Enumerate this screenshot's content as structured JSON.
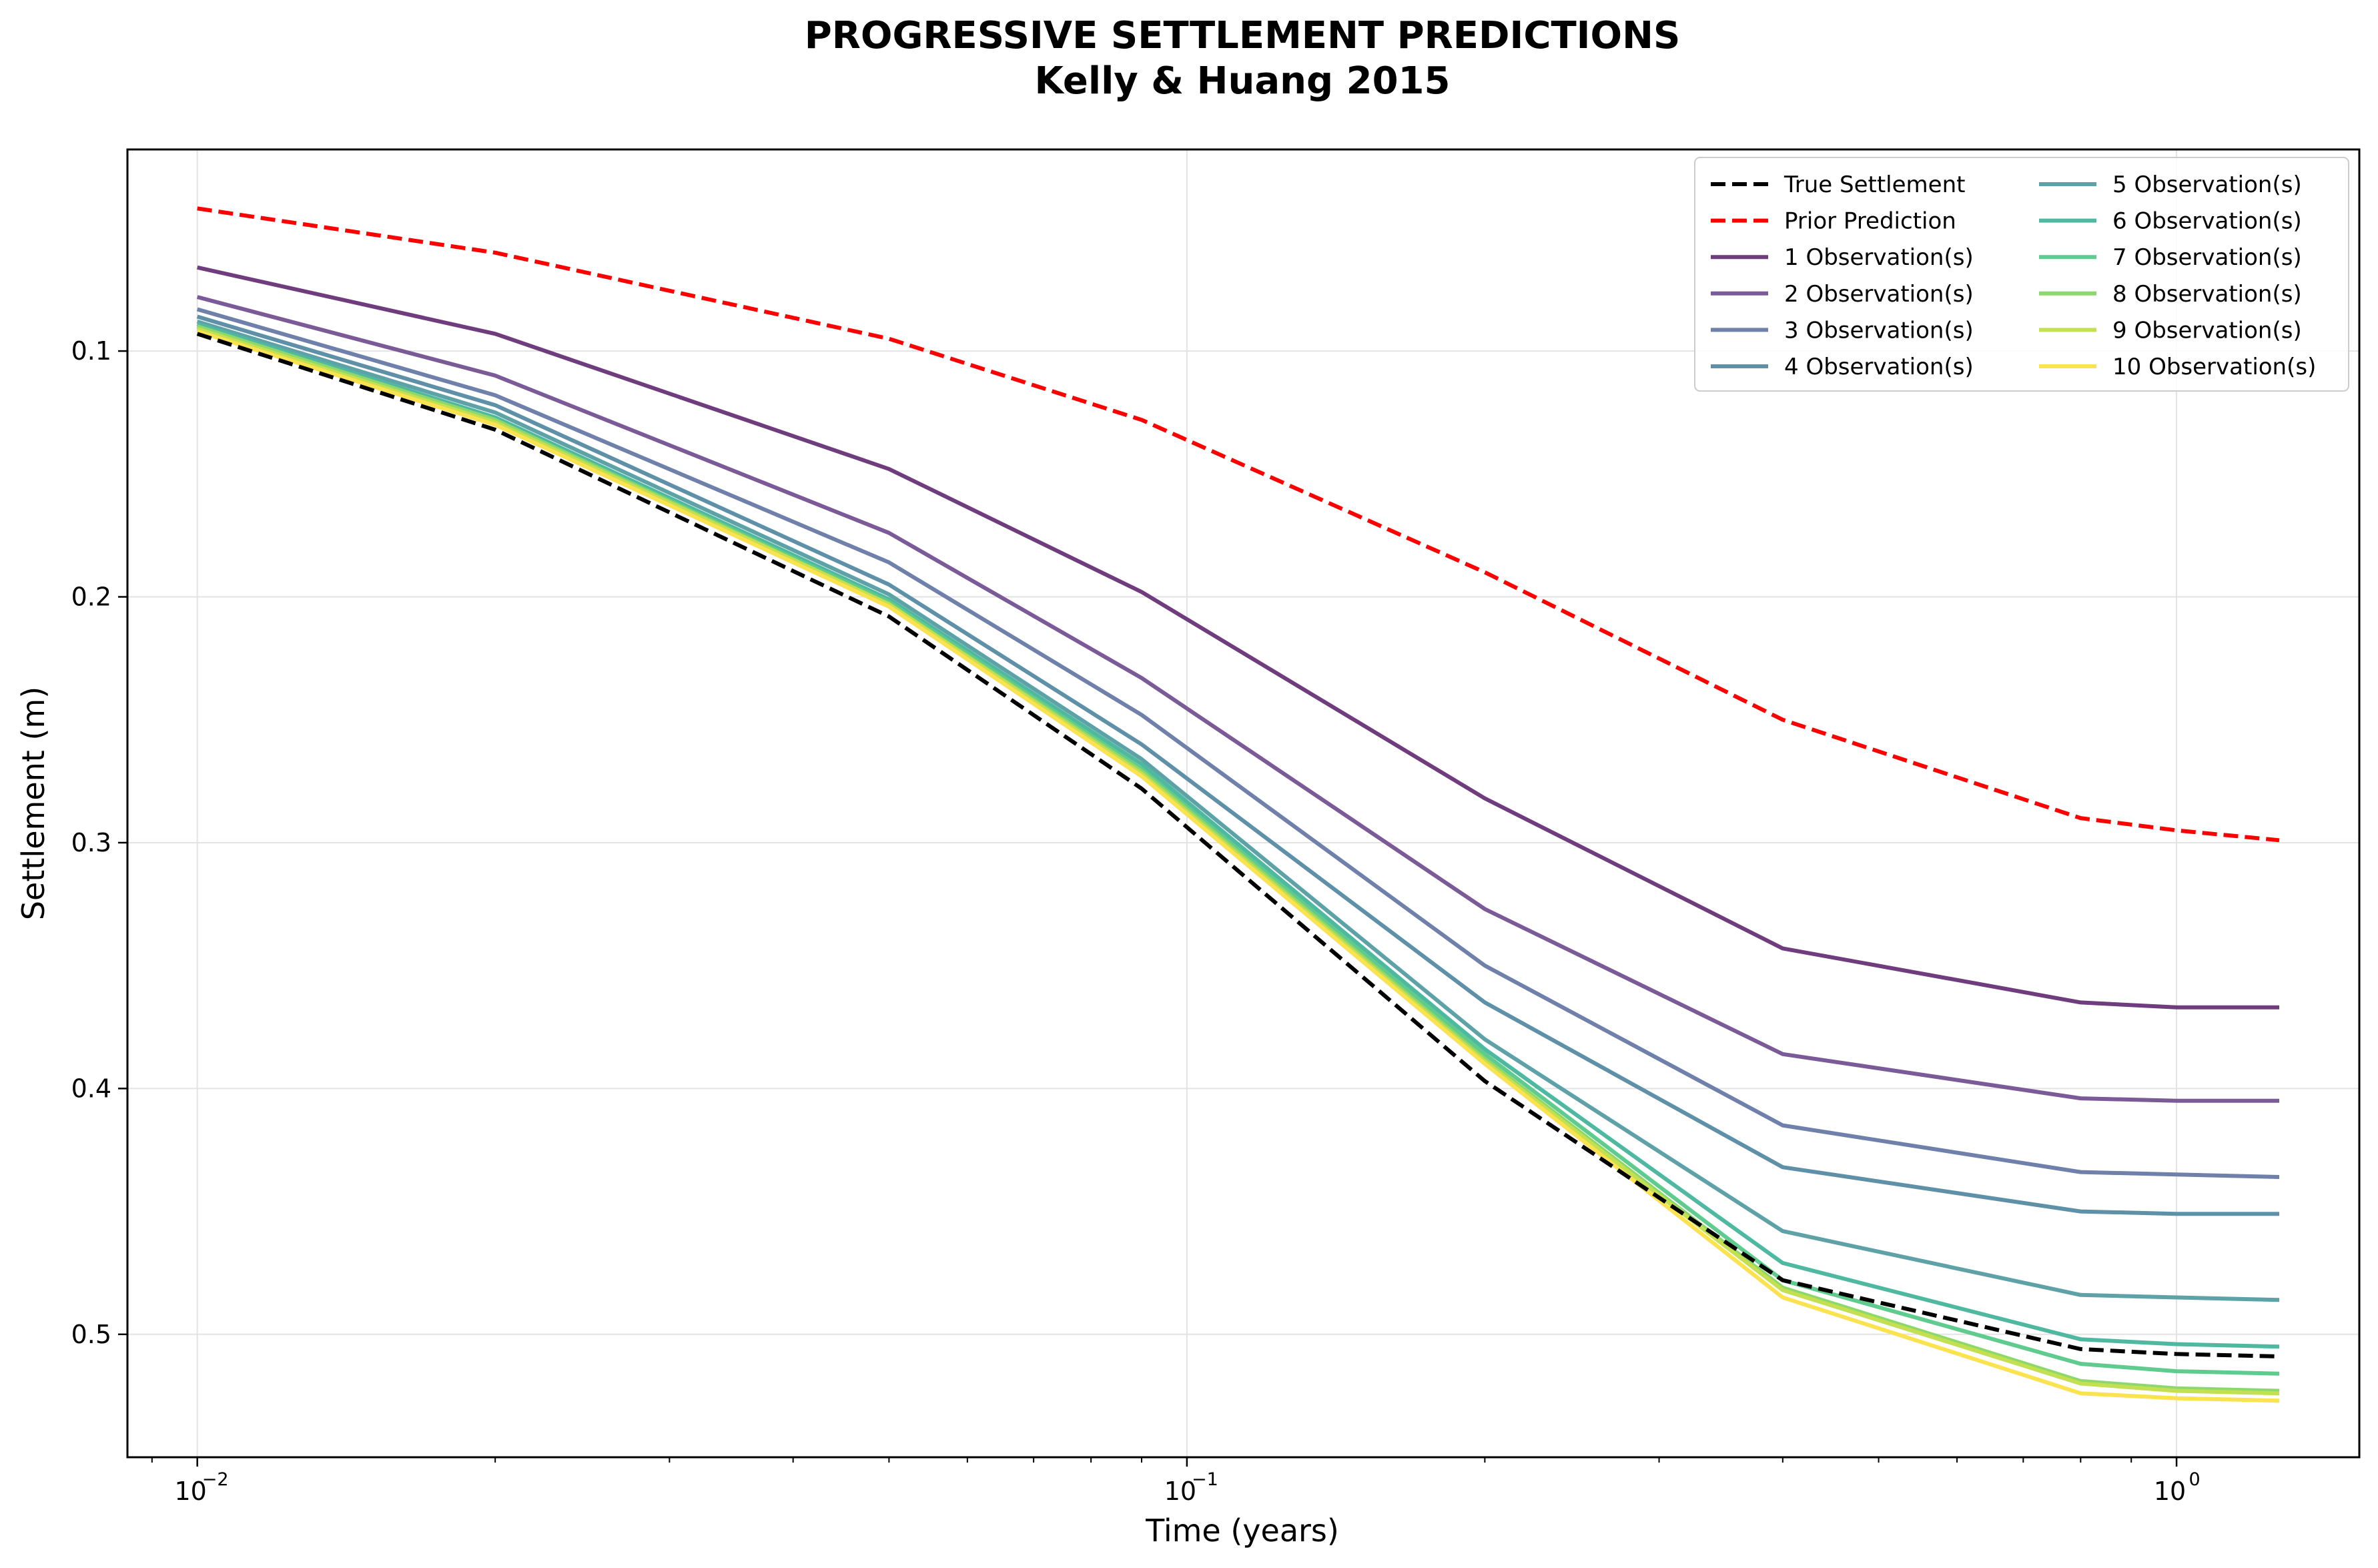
{
  "chart_data": {
    "type": "line",
    "title": "PROGRESSIVE SETTLEMENT PREDICTIONS",
    "subtitle": "Kelly & Huang 2015",
    "xlabel": "Time (years)",
    "ylabel": "Settlement (m)",
    "xscale": "log",
    "xlim": [
      0.0085,
      1.53
    ],
    "ylim": [
      0.55,
      0.018
    ],
    "y_inverted": true,
    "grid": true,
    "legend_placement": "top-right",
    "legend_columns": 2,
    "x_ticks": [
      0.01,
      0.1,
      1
    ],
    "x_tick_labels": [
      "10",
      "10",
      "10"
    ],
    "x_tick_exponents": [
      "−2",
      "−1",
      "0"
    ],
    "y_ticks": [
      0.1,
      0.2,
      0.3,
      0.4,
      0.5
    ],
    "y_tick_labels": [
      "0.1",
      "0.2",
      "0.3",
      "0.4",
      "0.5"
    ],
    "x": [
      0.01,
      0.02,
      0.05,
      0.09,
      0.2,
      0.4,
      0.8,
      1.0,
      1.27
    ],
    "series": [
      {
        "name": "True Settlement",
        "color": "#000000",
        "dashed": true,
        "values": [
          0.093,
          0.132,
          0.208,
          0.278,
          0.397,
          0.478,
          0.506,
          0.508,
          0.509
        ]
      },
      {
        "name": "Prior Prediction",
        "color": "#ff0000",
        "dashed": true,
        "values": [
          0.042,
          0.06,
          0.095,
          0.128,
          0.19,
          0.25,
          0.29,
          0.295,
          0.299
        ]
      },
      {
        "name": "1 Observation(s)",
        "color": "#6f3d7e",
        "dashed": false,
        "values": [
          0.066,
          0.093,
          0.148,
          0.198,
          0.282,
          0.343,
          0.365,
          0.367,
          0.367
        ]
      },
      {
        "name": "2 Observation(s)",
        "color": "#7b5a98",
        "dashed": false,
        "values": [
          0.078,
          0.11,
          0.174,
          0.233,
          0.327,
          0.386,
          0.404,
          0.405,
          0.405
        ]
      },
      {
        "name": "3 Observation(s)",
        "color": "#6f80ab",
        "dashed": false,
        "values": [
          0.083,
          0.118,
          0.186,
          0.248,
          0.35,
          0.415,
          0.434,
          0.435,
          0.436
        ]
      },
      {
        "name": "4 Observation(s)",
        "color": "#5e90a8",
        "dashed": false,
        "values": [
          0.086,
          0.122,
          0.195,
          0.26,
          0.365,
          0.432,
          0.45,
          0.451,
          0.451
        ]
      },
      {
        "name": "5 Observation(s)",
        "color": "#5ea2a8",
        "dashed": false,
        "values": [
          0.088,
          0.125,
          0.199,
          0.266,
          0.38,
          0.458,
          0.484,
          0.485,
          0.486
        ]
      },
      {
        "name": "6 Observation(s)",
        "color": "#4fb8a0",
        "dashed": false,
        "values": [
          0.089,
          0.127,
          0.201,
          0.268,
          0.384,
          0.471,
          0.502,
          0.504,
          0.505
        ]
      },
      {
        "name": "7 Observation(s)",
        "color": "#5fcb8f",
        "dashed": false,
        "values": [
          0.09,
          0.128,
          0.202,
          0.27,
          0.386,
          0.478,
          0.512,
          0.515,
          0.516
        ]
      },
      {
        "name": "8 Observation(s)",
        "color": "#8cd86e",
        "dashed": false,
        "values": [
          0.09,
          0.128,
          0.203,
          0.271,
          0.388,
          0.481,
          0.519,
          0.522,
          0.523
        ]
      },
      {
        "name": "9 Observation(s)",
        "color": "#c2e050",
        "dashed": false,
        "values": [
          0.091,
          0.129,
          0.203,
          0.272,
          0.389,
          0.482,
          0.52,
          0.523,
          0.524
        ]
      },
      {
        "name": "10 Observation(s)",
        "color": "#fbe34f",
        "dashed": false,
        "values": [
          0.092,
          0.13,
          0.204,
          0.273,
          0.39,
          0.485,
          0.524,
          0.526,
          0.527
        ]
      }
    ]
  }
}
